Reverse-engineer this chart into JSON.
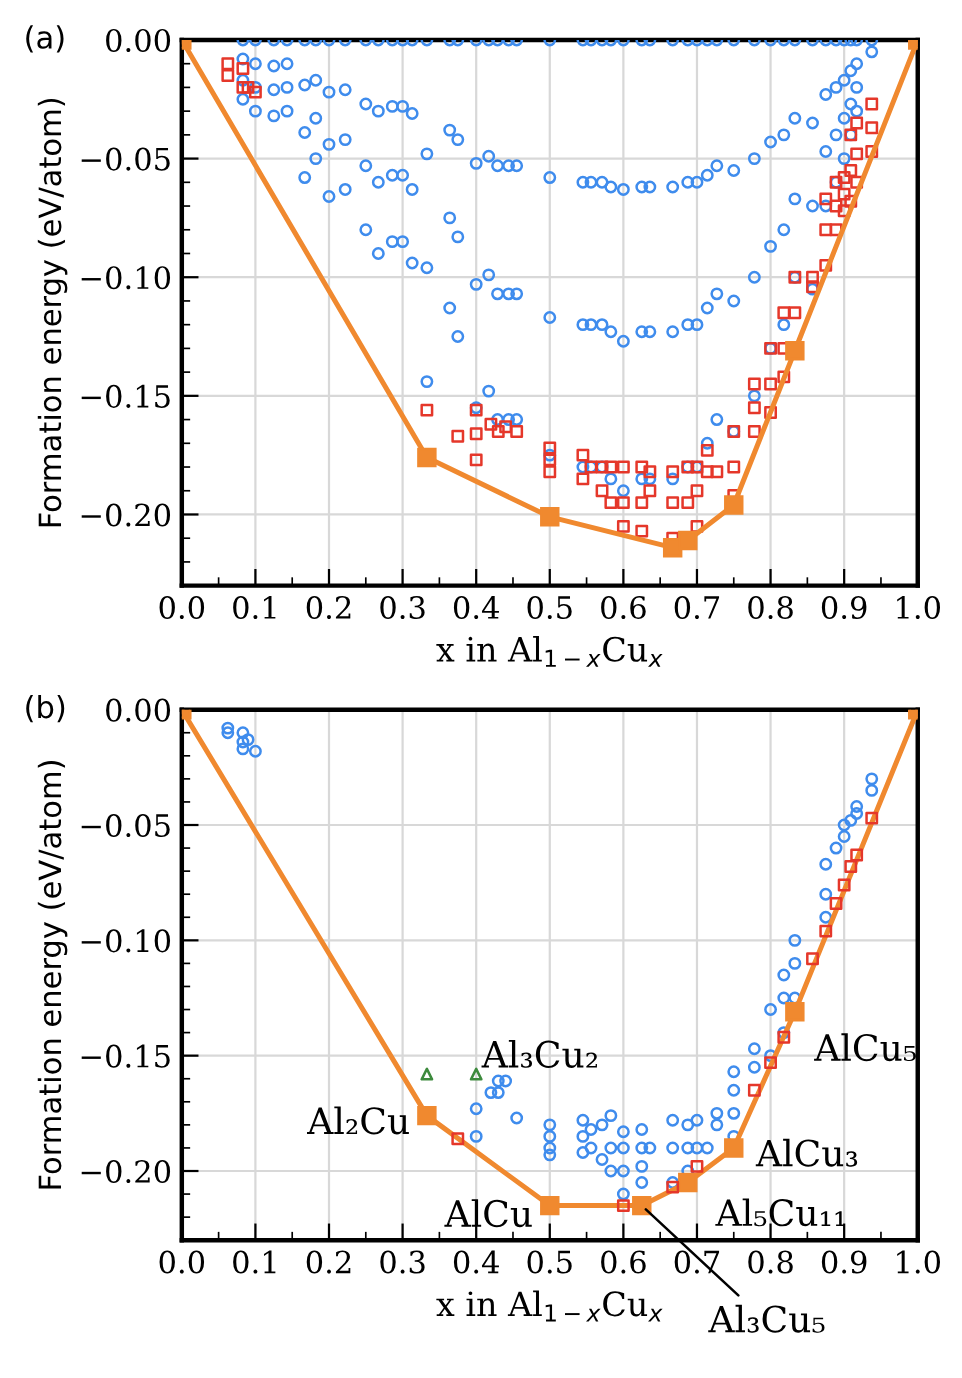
{
  "chart_data": [
    {
      "type": "scatter",
      "title": "(a)",
      "xlabel": "x in Al$_{1−x}$Cu$_{x}$",
      "ylabel": "Formation energy (eV/atom)",
      "xlim": [
        0,
        1
      ],
      "ylim": [
        -0.23,
        0
      ],
      "xticks": [
        {
          "value": 0,
          "label": "0.0"
        },
        {
          "value": 0.1,
          "label": "0.1"
        },
        {
          "value": 0.2,
          "label": "0.2"
        },
        {
          "value": 0.3,
          "label": "0.3"
        },
        {
          "value": 0.4,
          "label": "0.4"
        },
        {
          "value": 0.5,
          "label": "0.5"
        },
        {
          "value": 0.6,
          "label": "0.6"
        },
        {
          "value": 0.7,
          "label": "0.7"
        },
        {
          "value": 0.8,
          "label": "0.8"
        },
        {
          "value": 0.9,
          "label": "0.9"
        },
        {
          "value": 1,
          "label": "1.0"
        }
      ],
      "yticks": [
        {
          "value": 0,
          "label": "0.00"
        },
        {
          "value": -0.05,
          "label": "−0.05"
        },
        {
          "value": -0.1,
          "label": "−0.10"
        },
        {
          "value": -0.15,
          "label": "−0.15"
        },
        {
          "value": -0.2,
          "label": "−0.20"
        }
      ],
      "grid": true,
      "series": [
        {
          "type": "scatter",
          "marker": "circle",
          "color": "#3f8ced",
          "x": [
            0.083,
            0.083,
            0.083,
            0.083,
            0.1,
            0.1,
            0.1,
            0.1,
            0.125,
            0.125,
            0.125,
            0.125,
            0.143,
            0.143,
            0.143,
            0.143,
            0.167,
            0.167,
            0.167,
            0.167,
            0.182,
            0.182,
            0.182,
            0.182,
            0.2,
            0.2,
            0.2,
            0.2,
            0.222,
            0.222,
            0.222,
            0.222,
            0.25,
            0.25,
            0.25,
            0.25,
            0.267,
            0.267,
            0.267,
            0.267,
            0.286,
            0.286,
            0.286,
            0.286,
            0.3,
            0.3,
            0.3,
            0.3,
            0.313,
            0.313,
            0.313,
            0.313,
            0.333,
            0.333,
            0.333,
            0.333,
            0.364,
            0.364,
            0.364,
            0.364,
            0.375,
            0.375,
            0.375,
            0.375,
            0.4,
            0.4,
            0.4,
            0.4,
            0.417,
            0.417,
            0.417,
            0.417,
            0.429,
            0.429,
            0.429,
            0.429,
            0.444,
            0.444,
            0.444,
            0.444,
            0.455,
            0.455,
            0.455,
            0.455
          ],
          "values": [
            0,
            -0.008,
            -0.017,
            -0.025,
            0,
            -0.01,
            -0.02,
            -0.03,
            0,
            -0.011,
            -0.021,
            -0.032,
            0,
            -0.01,
            -0.02,
            -0.03,
            0,
            -0.019,
            -0.039,
            -0.058,
            0,
            -0.017,
            -0.033,
            -0.05,
            0,
            -0.022,
            -0.044,
            -0.066,
            0,
            -0.021,
            -0.042,
            -0.063,
            0,
            -0.027,
            -0.053,
            -0.08,
            0,
            -0.03,
            -0.06,
            -0.09,
            0,
            -0.028,
            -0.057,
            -0.085,
            0,
            -0.028,
            -0.057,
            -0.085,
            0,
            -0.031,
            -0.063,
            -0.094,
            0,
            -0.048,
            -0.096,
            -0.144,
            0,
            -0.038,
            -0.075,
            -0.113,
            0,
            -0.042,
            -0.083,
            -0.125,
            0,
            -0.052,
            -0.103,
            -0.155,
            0,
            -0.049,
            -0.099,
            -0.148,
            0,
            -0.053,
            -0.107,
            -0.16,
            0,
            -0.053,
            -0.107,
            -0.16,
            0,
            -0.053,
            -0.107,
            -0.16
          ]
        },
        {
          "type": "scatter",
          "marker": "circle",
          "color": "#3f8ced",
          "x": [
            0.5,
            0.5,
            0.5,
            0.5,
            0.545,
            0.545,
            0.545,
            0.545,
            0.556,
            0.556,
            0.556,
            0.556,
            0.571,
            0.571,
            0.571,
            0.571,
            0.583,
            0.583,
            0.583,
            0.583,
            0.6,
            0.6,
            0.6,
            0.6,
            0.625,
            0.625,
            0.625,
            0.625,
            0.636,
            0.636,
            0.636,
            0.636,
            0.667,
            0.667,
            0.667,
            0.667,
            0.6875,
            0.6875,
            0.6875,
            0.6875,
            0.7,
            0.7,
            0.7,
            0.7,
            0.714,
            0.714,
            0.714,
            0.714,
            0.727,
            0.727,
            0.727,
            0.727,
            0.75,
            0.75,
            0.75,
            0.75,
            0.778,
            0.778,
            0.778,
            0.778,
            0.8,
            0.8,
            0.8,
            0.8,
            0.818,
            0.818,
            0.818,
            0.818,
            0.833,
            0.833,
            0.833,
            0.833,
            0.857,
            0.857,
            0.857,
            0.857,
            0.875,
            0.875,
            0.875,
            0.875,
            0.889,
            0.889,
            0.889,
            0.889,
            0.9,
            0.9,
            0.9,
            0.9,
            0.909,
            0.909,
            0.909,
            0.909,
            0.917,
            0.917,
            0.917,
            0.917,
            0.9375,
            0.9375
          ],
          "values": [
            0,
            -0.058,
            -0.117,
            -0.175,
            0,
            -0.06,
            -0.12,
            -0.18,
            0,
            -0.06,
            -0.12,
            -0.18,
            0,
            -0.06,
            -0.12,
            -0.18,
            0,
            -0.062,
            -0.123,
            -0.185,
            0,
            -0.063,
            -0.127,
            -0.19,
            0,
            -0.062,
            -0.123,
            -0.185,
            0,
            -0.062,
            -0.123,
            -0.185,
            0,
            -0.062,
            -0.123,
            -0.185,
            0,
            -0.06,
            -0.12,
            -0.18,
            0,
            -0.06,
            -0.12,
            -0.18,
            0,
            -0.057,
            -0.113,
            -0.17,
            0,
            -0.053,
            -0.107,
            -0.16,
            0,
            -0.055,
            -0.11,
            -0.165,
            0,
            -0.05,
            -0.1,
            -0.15,
            0,
            -0.043,
            -0.087,
            -0.13,
            0,
            -0.04,
            -0.08,
            -0.12,
            0,
            -0.033,
            -0.067,
            -0.1,
            0,
            -0.035,
            -0.07,
            -0.105,
            0,
            -0.023,
            -0.047,
            -0.07,
            0,
            -0.02,
            -0.04,
            -0.06,
            0,
            -0.017,
            -0.033,
            -0.05,
            0,
            -0.013,
            -0.027,
            -0.04,
            0,
            -0.01,
            -0.02,
            -0.03,
            0,
            -0.005
          ]
        },
        {
          "type": "scatter",
          "marker": "square",
          "color": "#e5372a",
          "x": [
            0.0625,
            0.0625,
            0.083,
            0.083,
            0.09,
            0.1,
            0.333,
            0.375,
            0.4,
            0.4,
            0.4,
            0.42,
            0.43,
            0.44,
            0.455,
            0.5,
            0.5,
            0.5,
            0.545,
            0.545,
            0.556,
            0.571,
            0.571,
            0.583,
            0.583,
            0.6,
            0.6,
            0.6,
            0.625,
            0.625,
            0.625,
            0.636,
            0.636,
            0.667,
            0.667,
            0.667,
            0.6875,
            0.6875,
            0.7,
            0.7,
            0.7,
            0.714,
            0.727,
            0.714,
            0.75,
            0.75,
            0.75,
            0.778,
            0.778,
            0.778,
            0.8,
            0.8,
            0.8,
            0.818,
            0.818,
            0.818,
            0.833,
            0.833,
            0.857,
            0.857,
            0.875,
            0.875,
            0.875,
            0.889,
            0.889,
            0.889,
            0.9,
            0.9,
            0.9,
            0.909,
            0.909,
            0.909,
            0.917,
            0.917,
            0.917,
            0.9375,
            0.9375,
            0.9375
          ],
          "values": [
            -0.01,
            -0.015,
            -0.012,
            -0.02,
            -0.02,
            -0.022,
            -0.156,
            -0.167,
            -0.156,
            -0.166,
            -0.177,
            -0.162,
            -0.165,
            -0.163,
            -0.165,
            -0.172,
            -0.177,
            -0.182,
            -0.175,
            -0.185,
            -0.18,
            -0.18,
            -0.19,
            -0.18,
            -0.195,
            -0.18,
            -0.195,
            -0.205,
            -0.18,
            -0.195,
            -0.207,
            -0.182,
            -0.19,
            -0.182,
            -0.195,
            -0.21,
            -0.18,
            -0.195,
            -0.18,
            -0.19,
            -0.205,
            -0.182,
            -0.182,
            -0.173,
            -0.165,
            -0.18,
            -0.192,
            -0.145,
            -0.155,
            -0.165,
            -0.13,
            -0.145,
            -0.157,
            -0.115,
            -0.13,
            -0.142,
            -0.1,
            -0.115,
            -0.1,
            -0.104,
            -0.067,
            -0.08,
            -0.095,
            -0.06,
            -0.07,
            -0.08,
            -0.058,
            -0.065,
            -0.072,
            -0.04,
            -0.055,
            -0.068,
            -0.035,
            -0.048,
            -0.06,
            -0.027,
            -0.037,
            -0.047
          ]
        },
        {
          "type": "line",
          "marker": "square",
          "color": "#f0892f",
          "x": [
            0,
            0.333,
            0.5,
            0.667,
            0.6875,
            0.75,
            0.833,
            1
          ],
          "values": [
            0,
            -0.176,
            -0.201,
            -0.214,
            -0.211,
            -0.196,
            -0.131,
            0
          ]
        }
      ]
    },
    {
      "type": "scatter",
      "title": "(b)",
      "xlabel": "x in Al$_{1−x}$Cu$_{x}$",
      "ylabel": "Formation energy (eV/atom)",
      "xlim": [
        0,
        1
      ],
      "ylim": [
        -0.23,
        0
      ],
      "xticks": [
        {
          "value": 0,
          "label": "0.0"
        },
        {
          "value": 0.1,
          "label": "0.1"
        },
        {
          "value": 0.2,
          "label": "0.2"
        },
        {
          "value": 0.3,
          "label": "0.3"
        },
        {
          "value": 0.4,
          "label": "0.4"
        },
        {
          "value": 0.5,
          "label": "0.5"
        },
        {
          "value": 0.6,
          "label": "0.6"
        },
        {
          "value": 0.7,
          "label": "0.7"
        },
        {
          "value": 0.8,
          "label": "0.8"
        },
        {
          "value": 0.9,
          "label": "0.9"
        },
        {
          "value": 1,
          "label": "1.0"
        }
      ],
      "yticks": [
        {
          "value": 0,
          "label": "0.00"
        },
        {
          "value": -0.05,
          "label": "−0.05"
        },
        {
          "value": -0.1,
          "label": "−0.10"
        },
        {
          "value": -0.15,
          "label": "−0.15"
        },
        {
          "value": -0.2,
          "label": "−0.20"
        }
      ],
      "grid": true,
      "annotations": [
        {
          "text": "Al₃Cu₂",
          "x": 0.4,
          "y": -0.158
        },
        {
          "text": "Al₂Cu",
          "x": 0.333,
          "y": -0.176
        },
        {
          "text": "AlCu",
          "x": 0.5,
          "y": -0.215
        },
        {
          "text": "Al₃Cu₅",
          "x": 0.625,
          "y": -0.215
        },
        {
          "text": "Al₅Cu₁₁",
          "x": 0.6875,
          "y": -0.205
        },
        {
          "text": "AlCu₃",
          "x": 0.75,
          "y": -0.19
        },
        {
          "text": "AlCu₅",
          "x": 0.833,
          "y": -0.131
        }
      ],
      "series": [
        {
          "type": "scatter",
          "marker": "circle",
          "color": "#3f8ced",
          "x": [
            0.0625,
            0.0625,
            0.083,
            0.083,
            0.083,
            0.09,
            0.1,
            0.4,
            0.4,
            0.42,
            0.43,
            0.43,
            0.44,
            0.455,
            0.5,
            0.5,
            0.5,
            0.5,
            0.545,
            0.545,
            0.545,
            0.556,
            0.556,
            0.571,
            0.571,
            0.583,
            0.583,
            0.583,
            0.6,
            0.6,
            0.6,
            0.6,
            0.625,
            0.625,
            0.625,
            0.625,
            0.636,
            0.667,
            0.667,
            0.667,
            0.6875,
            0.6875,
            0.6875,
            0.7,
            0.7,
            0.714,
            0.727,
            0.727,
            0.75,
            0.75,
            0.75,
            0.75,
            0.778,
            0.778,
            0.8,
            0.8,
            0.818,
            0.818,
            0.818,
            0.833,
            0.833,
            0.833,
            0.875,
            0.875,
            0.875,
            0.889,
            0.9,
            0.9,
            0.909,
            0.917,
            0.917,
            0.9375,
            0.9375
          ],
          "values": [
            -0.008,
            -0.01,
            -0.01,
            -0.014,
            -0.017,
            -0.013,
            -0.018,
            -0.173,
            -0.185,
            -0.166,
            -0.161,
            -0.166,
            -0.161,
            -0.177,
            -0.18,
            -0.185,
            -0.19,
            -0.193,
            -0.178,
            -0.185,
            -0.192,
            -0.182,
            -0.19,
            -0.18,
            -0.195,
            -0.176,
            -0.19,
            -0.2,
            -0.183,
            -0.19,
            -0.2,
            -0.21,
            -0.182,
            -0.19,
            -0.198,
            -0.205,
            -0.19,
            -0.178,
            -0.19,
            -0.205,
            -0.18,
            -0.19,
            -0.2,
            -0.178,
            -0.19,
            -0.19,
            -0.175,
            -0.18,
            -0.157,
            -0.165,
            -0.175,
            -0.185,
            -0.147,
            -0.155,
            -0.13,
            -0.15,
            -0.115,
            -0.125,
            -0.14,
            -0.1,
            -0.11,
            -0.125,
            -0.067,
            -0.08,
            -0.09,
            -0.06,
            -0.05,
            -0.055,
            -0.048,
            -0.042,
            -0.045,
            -0.03,
            -0.035
          ]
        },
        {
          "type": "scatter",
          "marker": "triangle",
          "color": "#3d8a3d",
          "x": [
            0.333,
            0.4
          ],
          "values": [
            -0.158,
            -0.158
          ]
        },
        {
          "type": "line",
          "marker": "square",
          "color": "#f0892f",
          "x": [
            0,
            0.333,
            0.5,
            0.625,
            0.6875,
            0.75,
            0.833,
            1
          ],
          "values": [
            0,
            -0.176,
            -0.215,
            -0.215,
            -0.205,
            -0.19,
            -0.131,
            0
          ]
        },
        {
          "type": "scatter",
          "marker": "square",
          "color": "#e5372a",
          "x": [
            0.375,
            0.6,
            0.667,
            0.7,
            0.778,
            0.8,
            0.818,
            0.857,
            0.875,
            0.889,
            0.9,
            0.909,
            0.917,
            0.9375
          ],
          "values": [
            -0.186,
            -0.215,
            -0.207,
            -0.198,
            -0.165,
            -0.153,
            -0.142,
            -0.108,
            -0.096,
            -0.084,
            -0.076,
            -0.068,
            -0.063,
            -0.047
          ]
        }
      ]
    }
  ]
}
